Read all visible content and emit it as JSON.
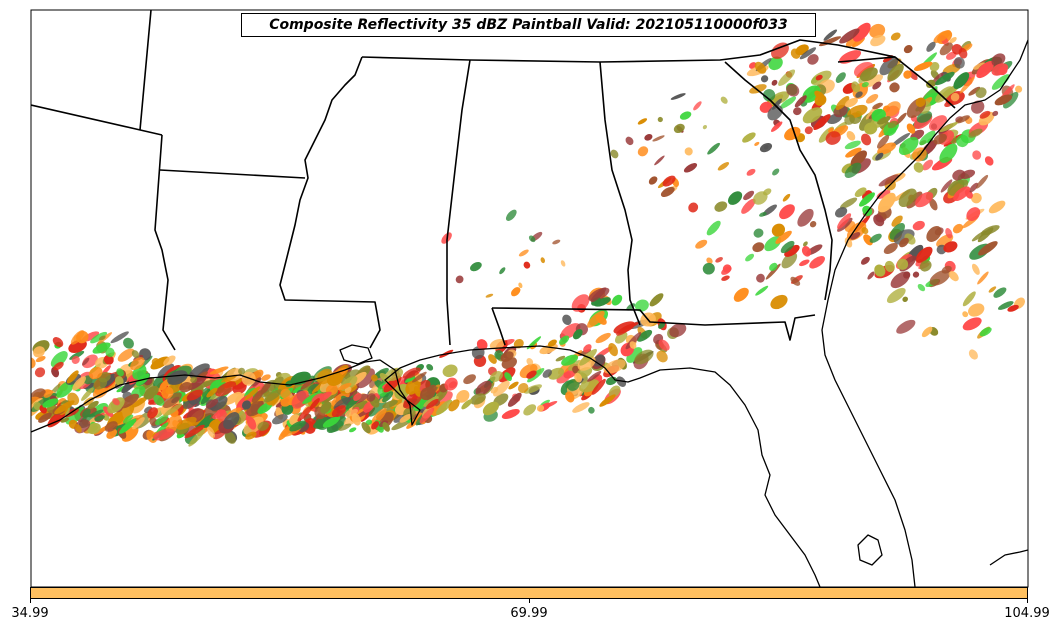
{
  "title": "Composite Reflectivity 35 dBZ Paintball Valid: 202105110000f033",
  "colors": {
    "member_palette": [
      "#ff4a4a",
      "#e02818",
      "#ff8c1a",
      "#ffb85a",
      "#3ad63a",
      "#2e8b3a",
      "#a0522d",
      "#9a3a3a",
      "#8a8a2a",
      "#b0b040",
      "#555555",
      "#d98c00"
    ],
    "colorbar_fill": "#ffc060",
    "boundary_lines": "#000000"
  },
  "colorbar": {
    "ticks": [
      "34.99",
      "69.99",
      "104.99"
    ]
  }
}
